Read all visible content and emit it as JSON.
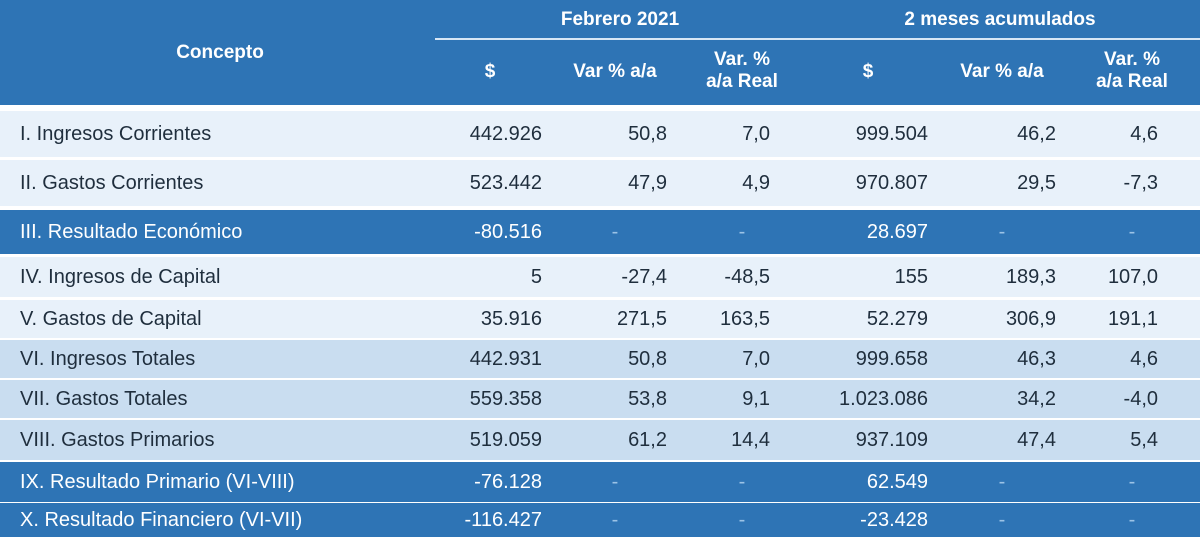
{
  "colors": {
    "header_bg": "#2e74b5",
    "highlight_bg": "#2e74b5",
    "row_light": "#e8f1fa",
    "row_mid": "#c9ddf0",
    "text_dark": "#1f2e3d",
    "text_light": "#ffffff",
    "dash_color": "#9cc3e6"
  },
  "header": {
    "concepto": "Concepto",
    "group1": "Febrero 2021",
    "group2": "2 meses acumulados",
    "cols": [
      "$",
      "Var % a/a",
      "Var. %\na/a Real",
      "$",
      "Var % a/a",
      "Var. %\na/a Real"
    ]
  },
  "rows": [
    {
      "concept": "I. Ingresos Corrientes",
      "v": [
        "442.926",
        "50,8",
        "7,0",
        "999.504",
        "46,2",
        "4,6"
      ],
      "style": "light"
    },
    {
      "concept": "II. Gastos Corrientes",
      "v": [
        "523.442",
        "47,9",
        "4,9",
        "970.807",
        "29,5",
        "-7,3"
      ],
      "style": "light"
    },
    {
      "concept": "III. Resultado Económico",
      "v": [
        "-80.516",
        "-",
        "-",
        "28.697",
        "-",
        "-"
      ],
      "style": "highlight"
    },
    {
      "concept": "IV. Ingresos de Capital",
      "v": [
        "5",
        "-27,4",
        "-48,5",
        "155",
        "189,3",
        "107,0"
      ],
      "style": "light"
    },
    {
      "concept": "V. Gastos de Capital",
      "v": [
        "35.916",
        "271,5",
        "163,5",
        "52.279",
        "306,9",
        "191,1"
      ],
      "style": "light"
    },
    {
      "concept": "VI. Ingresos Totales",
      "v": [
        "442.931",
        "50,8",
        "7,0",
        "999.658",
        "46,3",
        "4,6"
      ],
      "style": "mid"
    },
    {
      "concept": "VII. Gastos Totales",
      "v": [
        "559.358",
        "53,8",
        "9,1",
        "1.023.086",
        "34,2",
        "-4,0"
      ],
      "style": "mid"
    },
    {
      "concept": "VIII. Gastos Primarios",
      "v": [
        "519.059",
        "61,2",
        "14,4",
        "937.109",
        "47,4",
        "5,4"
      ],
      "style": "mid"
    },
    {
      "concept": "IX. Resultado Primario (VI-VIII)",
      "v": [
        "-76.128",
        "-",
        "-",
        "62.549",
        "-",
        "-"
      ],
      "style": "highlight"
    },
    {
      "concept": "X. Resultado Financiero (VI-VII)",
      "v": [
        "-116.427",
        "-",
        "-",
        "-23.428",
        "-",
        "-"
      ],
      "style": "highlight"
    }
  ]
}
